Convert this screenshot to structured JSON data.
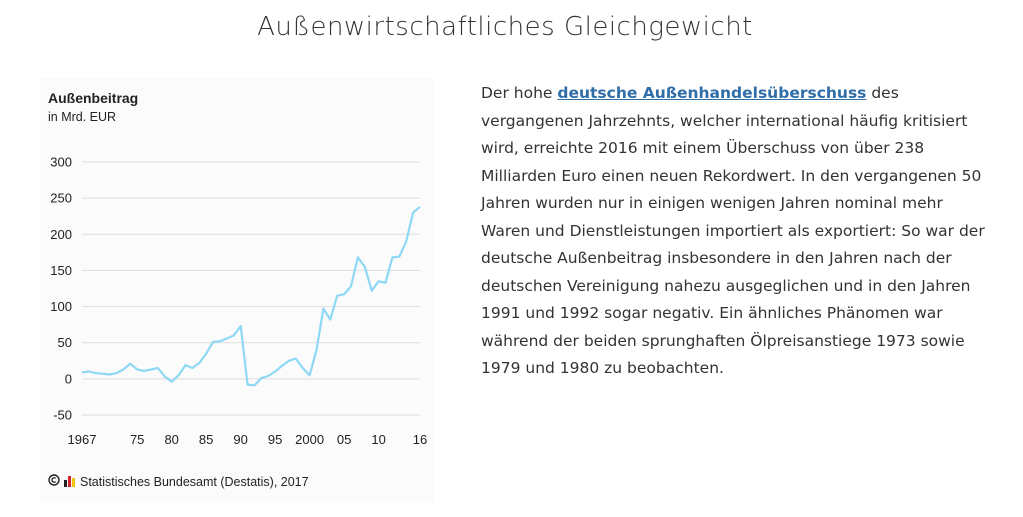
{
  "page": {
    "title": "Außenwirtschaftliches Gleichgewicht"
  },
  "article": {
    "text_before_link": "Der hohe ",
    "link_text": "deutsche Außenhandelsüberschuss",
    "text_after_link": " des vergangenen Jahrzehnts, welcher international häufig kritisiert wird, erreichte 2016 mit einem Überschuss von über 238 Milliarden Euro einen neuen Rekordwert. In den vergangenen 50 Jahren wurden nur in einigen wenigen Jahren nominal mehr Waren und Dienstleistungen importiert als exportiert: So war der deutsche Außenbeitrag insbesondere in den Jahren nach der deutschen Vereinigung nahezu ausgeglichen und in den Jahren 1991 und 1992 sogar negativ. Ein ähnliches Phänomen war während der beiden sprunghaften Ölpreisanstiege 1973 sowie 1979 und 1980 zu beobachten."
  },
  "chart_data": {
    "type": "line",
    "title": "Außenbeitrag",
    "subtitle": "in Mrd. EUR",
    "source": "Statistisches Bundesamt (Destatis), 2017",
    "line_color": "#8ed8f5",
    "grid": true,
    "ylim": [
      -50,
      300
    ],
    "yticks": [
      300,
      250,
      200,
      150,
      100,
      50,
      0,
      -50
    ],
    "xlim": [
      1967,
      2016
    ],
    "xticks": [
      {
        "value": 1967,
        "label": "1967"
      },
      {
        "value": 1975,
        "label": "75"
      },
      {
        "value": 1980,
        "label": "80"
      },
      {
        "value": 1985,
        "label": "85"
      },
      {
        "value": 1990,
        "label": "90"
      },
      {
        "value": 1995,
        "label": "95"
      },
      {
        "value": 2000,
        "label": "2000"
      },
      {
        "value": 2005,
        "label": "05"
      },
      {
        "value": 2010,
        "label": "10"
      },
      {
        "value": 2016,
        "label": "16"
      }
    ],
    "series": [
      {
        "x": [
          1967,
          1968,
          1969,
          1970,
          1971,
          1972,
          1973,
          1974,
          1975,
          1976,
          1977,
          1978,
          1979,
          1980,
          1981,
          1982,
          1983,
          1984,
          1985,
          1986,
          1987,
          1988,
          1989,
          1990,
          1991,
          1992,
          1993,
          1994,
          1995,
          1996,
          1997,
          1998,
          1999,
          2000,
          2001,
          2002,
          2003,
          2004,
          2005,
          2006,
          2007,
          2008,
          2009,
          2010,
          2011,
          2012,
          2013,
          2014,
          2015,
          2016
        ],
        "values": [
          9,
          10,
          8,
          7,
          6,
          8,
          13,
          21,
          13,
          11,
          13,
          15,
          3,
          -4,
          5,
          19,
          15,
          22,
          35,
          51,
          52,
          56,
          60,
          73,
          -8,
          -9,
          1,
          4,
          10,
          18,
          25,
          28,
          15,
          5,
          40,
          97,
          82,
          115,
          117,
          128,
          168,
          155,
          122,
          135,
          133,
          168,
          169,
          190,
          230,
          238
        ]
      }
    ]
  }
}
